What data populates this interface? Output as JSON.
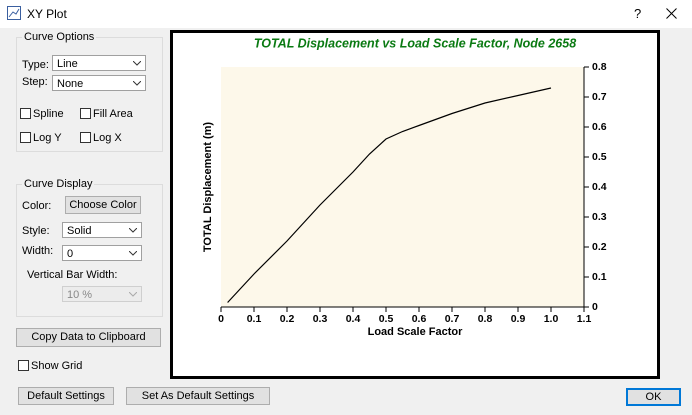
{
  "window": {
    "title": "XY Plot",
    "help": "?"
  },
  "curve_options": {
    "heading": "Curve Options",
    "type_label": "Type:",
    "type_value": "Line",
    "step_label": "Step:",
    "step_value": "None",
    "spline": "Spline",
    "fill_area": "Fill Area",
    "log_y": "Log Y",
    "log_x": "Log X"
  },
  "curve_display": {
    "heading": "Curve Display",
    "color_label": "Color:",
    "color_button": "Choose Color",
    "style_label": "Style:",
    "style_value": "Solid",
    "width_label": "Width:",
    "width_value": "0",
    "bar_width_label": "Vertical Bar Width:",
    "bar_width_value": "10 %"
  },
  "copy_button": "Copy Data to Clipboard",
  "show_grid": "Show Grid",
  "footer": {
    "default_settings": "Default Settings",
    "set_default": "Set As Default Settings",
    "ok": "OK"
  },
  "chart_data": {
    "type": "line",
    "title": "TOTAL Displacement  vs Load Scale Factor, Node 2658",
    "x_label": "Load Scale Factor",
    "y_label": "TOTAL Displacement (m)",
    "x": [
      0.02,
      0.1,
      0.2,
      0.3,
      0.4,
      0.45,
      0.5,
      0.55,
      0.6,
      0.7,
      0.8,
      0.9,
      1.0
    ],
    "series": [
      {
        "name": "Node 2658",
        "color": "#000000",
        "values": [
          0.015,
          0.11,
          0.22,
          0.34,
          0.45,
          0.51,
          0.56,
          0.585,
          0.605,
          0.645,
          0.68,
          0.705,
          0.73
        ]
      }
    ],
    "xlim": [
      0,
      1.1
    ],
    "ylim": [
      0,
      0.8
    ],
    "xticks": [
      0,
      0.1,
      0.2,
      0.3,
      0.4,
      0.5,
      0.6,
      0.7,
      0.8,
      0.9,
      {
        "value": 1,
        "label": "1.0"
      },
      1.1
    ],
    "yticks": [
      0,
      0.1,
      0.2,
      0.3,
      0.4,
      0.5,
      0.6,
      0.7,
      0.8
    ],
    "y_axis_side": "right",
    "title_color": "#0a7a12",
    "plot_background": "#fdf8ea"
  }
}
